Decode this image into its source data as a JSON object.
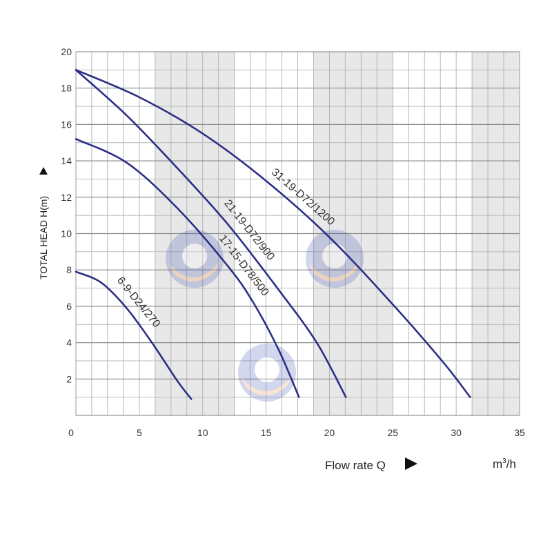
{
  "chart_data": {
    "type": "line",
    "title": "",
    "xlabel": "Flow rate Q",
    "xunit_base": "m",
    "xunit_sup": "3",
    "xunit_tail": "/h",
    "ylabel": "TOTAL HEAD H(m)",
    "xlim": [
      0,
      35
    ],
    "ylim": [
      0,
      20
    ],
    "x_ticks": [
      "0",
      "5",
      "10",
      "15",
      "20",
      "25",
      "30",
      "35"
    ],
    "y_ticks": [
      "2",
      "4",
      "6",
      "8",
      "10",
      "12",
      "14",
      "16",
      "18",
      "20"
    ],
    "grid": true,
    "legend": "none",
    "colors": {
      "curve": "#2b2f85",
      "shaded_band": "#e8e8e8",
      "grid": "#b5b5b5"
    },
    "series": [
      {
        "name": "6-9-D24/270",
        "x": [
          0,
          2,
          4,
          6,
          8,
          9.1
        ],
        "y": [
          7.9,
          7.3,
          5.9,
          4.0,
          1.9,
          0.9
        ]
      },
      {
        "name": "17-15-D78/500",
        "x": [
          0,
          4,
          8,
          12,
          14,
          16,
          17.6
        ],
        "y": [
          15.2,
          13.9,
          11.4,
          8.2,
          6.2,
          3.6,
          1.0
        ]
      },
      {
        "name": "21-19-D72/900",
        "x": [
          0,
          4,
          8,
          12,
          16,
          19,
          21.3
        ],
        "y": [
          19.0,
          16.5,
          13.6,
          10.5,
          6.9,
          4.0,
          1.0
        ]
      },
      {
        "name": "31-19-D72/1200",
        "x": [
          0,
          5,
          10,
          15,
          20,
          25,
          29,
          31.1
        ],
        "y": [
          19.0,
          17.5,
          15.5,
          12.9,
          9.8,
          6.1,
          2.9,
          1.0
        ]
      }
    ]
  }
}
